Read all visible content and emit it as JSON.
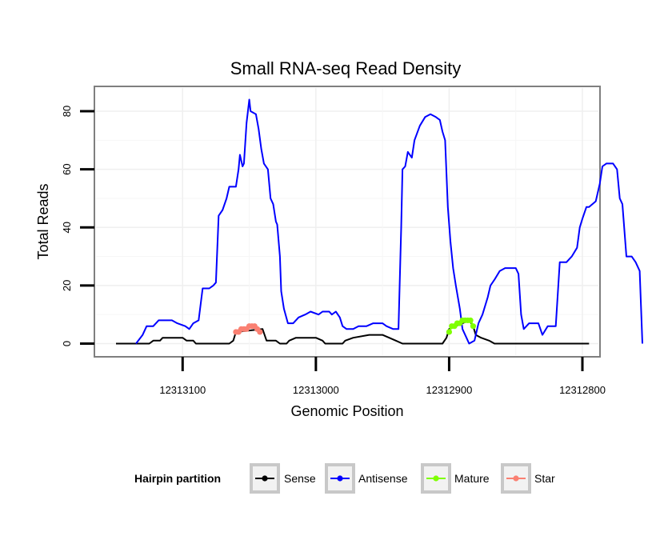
{
  "chart_data": {
    "type": "line",
    "title": "Small RNA-seq Read Density",
    "xlabel": "Genomic Position",
    "ylabel": "Total Reads",
    "xlim": [
      12313165,
      12312788
    ],
    "ylim": [
      -4,
      88
    ],
    "x_reversed": true,
    "x_ticks": [
      12313100,
      12313000,
      12312900,
      12312800
    ],
    "x_tick_labels": [
      "12313100",
      "12313000",
      "12312900",
      "12312800"
    ],
    "y_ticks": [
      0,
      20,
      40,
      60,
      80
    ],
    "y_tick_labels": [
      "0",
      "20",
      "40",
      "60",
      "80"
    ],
    "grid": true,
    "legend": {
      "title": "Hairpin partition",
      "position": "bottom",
      "entries": [
        {
          "name": "Sense",
          "color": "#000000"
        },
        {
          "name": "Antisense",
          "color": "#0000ff"
        },
        {
          "name": "Mature",
          "color": "#7fff00"
        },
        {
          "name": "Star",
          "color": "#fa8072"
        }
      ]
    },
    "series": [
      {
        "name": "Sense",
        "color": "#000000",
        "markers": false,
        "points": [
          [
            12313150,
            0
          ],
          [
            12313125,
            0
          ],
          [
            12313122,
            1
          ],
          [
            12313117,
            1
          ],
          [
            12313115,
            2
          ],
          [
            12313105,
            2
          ],
          [
            12313100,
            2
          ],
          [
            12313097,
            1
          ],
          [
            12313092,
            1
          ],
          [
            12313090,
            0
          ],
          [
            12313065,
            0
          ],
          [
            12313062,
            1
          ],
          [
            12313060,
            4
          ],
          [
            12313040,
            5
          ],
          [
            12313037,
            1
          ],
          [
            12313030,
            1
          ],
          [
            12313027,
            0
          ],
          [
            12313022,
            0
          ],
          [
            12313020,
            1
          ],
          [
            12313015,
            2
          ],
          [
            12313000,
            2
          ],
          [
            12312995,
            1
          ],
          [
            12312993,
            0
          ],
          [
            12312980,
            0
          ],
          [
            12312978,
            1
          ],
          [
            12312972,
            2
          ],
          [
            12312960,
            3
          ],
          [
            12312950,
            3
          ],
          [
            12312945,
            2
          ],
          [
            12312940,
            1
          ],
          [
            12312935,
            0
          ],
          [
            12312905,
            0
          ],
          [
            12312902,
            2
          ],
          [
            12312900,
            5
          ],
          [
            12312885,
            8
          ],
          [
            12312882,
            6
          ],
          [
            12312880,
            3
          ],
          [
            12312876,
            2
          ],
          [
            12312870,
            1
          ],
          [
            12312866,
            0
          ],
          [
            12312795,
            0
          ]
        ]
      },
      {
        "name": "Antisense",
        "color": "#0000ff",
        "markers": false,
        "points": [
          [
            12313135,
            0
          ],
          [
            12313130,
            3
          ],
          [
            12313127,
            6
          ],
          [
            12313122,
            6
          ],
          [
            12313118,
            8
          ],
          [
            12313108,
            8
          ],
          [
            12313104,
            7
          ],
          [
            12313098,
            6
          ],
          [
            12313095,
            5
          ],
          [
            12313092,
            7
          ],
          [
            12313088,
            8
          ],
          [
            12313085,
            19
          ],
          [
            12313080,
            19
          ],
          [
            12313077,
            20
          ],
          [
            12313075,
            21
          ],
          [
            12313073,
            44
          ],
          [
            12313070,
            46
          ],
          [
            12313067,
            50
          ],
          [
            12313065,
            54
          ],
          [
            12313060,
            54
          ],
          [
            12313058,
            60
          ],
          [
            12313057,
            65
          ],
          [
            12313055,
            61
          ],
          [
            12313054,
            62
          ],
          [
            12313052,
            76
          ],
          [
            12313050,
            84
          ],
          [
            12313049,
            80
          ],
          [
            12313045,
            79
          ],
          [
            12313043,
            74
          ],
          [
            12313041,
            67
          ],
          [
            12313039,
            62
          ],
          [
            12313036,
            60
          ],
          [
            12313034,
            50
          ],
          [
            12313032,
            48
          ],
          [
            12313030,
            42
          ],
          [
            12313029,
            41
          ],
          [
            12313027,
            30
          ],
          [
            12313026,
            18
          ],
          [
            12313024,
            12
          ],
          [
            12313021,
            7
          ],
          [
            12313017,
            7
          ],
          [
            12313013,
            9
          ],
          [
            12313008,
            10
          ],
          [
            12313004,
            11
          ],
          [
            12312998,
            10
          ],
          [
            12312995,
            11
          ],
          [
            12312990,
            11
          ],
          [
            12312988,
            10
          ],
          [
            12312985,
            11
          ],
          [
            12312982,
            9
          ],
          [
            12312980,
            6
          ],
          [
            12312977,
            5
          ],
          [
            12312972,
            5
          ],
          [
            12312968,
            6
          ],
          [
            12312962,
            6
          ],
          [
            12312957,
            7
          ],
          [
            12312950,
            7
          ],
          [
            12312947,
            6
          ],
          [
            12312942,
            5
          ],
          [
            12312938,
            5
          ],
          [
            12312936,
            40
          ],
          [
            12312935,
            60
          ],
          [
            12312933,
            61
          ],
          [
            12312931,
            66
          ],
          [
            12312928,
            64
          ],
          [
            12312926,
            70
          ],
          [
            12312922,
            75
          ],
          [
            12312918,
            78
          ],
          [
            12312914,
            79
          ],
          [
            12312910,
            78
          ],
          [
            12312907,
            77
          ],
          [
            12312905,
            73
          ],
          [
            12312903,
            70
          ],
          [
            12312901,
            47
          ],
          [
            12312899,
            35
          ],
          [
            12312897,
            26
          ],
          [
            12312895,
            20
          ],
          [
            12312892,
            12
          ],
          [
            12312890,
            5
          ],
          [
            12312887,
            2
          ],
          [
            12312885,
            0
          ],
          [
            12312881,
            1
          ],
          [
            12312878,
            7
          ],
          [
            12312875,
            10
          ],
          [
            12312871,
            16
          ],
          [
            12312869,
            20
          ],
          [
            12312866,
            22
          ],
          [
            12312862,
            25
          ],
          [
            12312858,
            26
          ],
          [
            12312850,
            26
          ],
          [
            12312848,
            24
          ],
          [
            12312846,
            10
          ],
          [
            12312844,
            5
          ],
          [
            12312840,
            7
          ],
          [
            12312833,
            7
          ],
          [
            12312830,
            3
          ],
          [
            12312826,
            6
          ],
          [
            12312820,
            6
          ],
          [
            12312817,
            28
          ],
          [
            12312812,
            28
          ],
          [
            12312808,
            30
          ],
          [
            12312804,
            33
          ],
          [
            12312802,
            40
          ],
          [
            12312800,
            43
          ],
          [
            12312797,
            47
          ],
          [
            12312795,
            47
          ],
          [
            12312790,
            49
          ],
          [
            12312787,
            55
          ],
          [
            12312785,
            61
          ],
          [
            12312782,
            62
          ],
          [
            12312777,
            62
          ],
          [
            12312774,
            60
          ],
          [
            12312772,
            50
          ],
          [
            12312770,
            48
          ],
          [
            12312767,
            30
          ],
          [
            12312763,
            30
          ],
          [
            12312760,
            28
          ],
          [
            12312757,
            25
          ],
          [
            12312755,
            0
          ]
        ]
      },
      {
        "name": "Mature",
        "color": "#7fff00",
        "markers": true,
        "points": [
          [
            12312900,
            4
          ],
          [
            12312898,
            6
          ],
          [
            12312896,
            6
          ],
          [
            12312894,
            7
          ],
          [
            12312892,
            7
          ],
          [
            12312890,
            8
          ],
          [
            12312888,
            8
          ],
          [
            12312886,
            8
          ],
          [
            12312884,
            8
          ],
          [
            12312882,
            6
          ]
        ]
      },
      {
        "name": "Star",
        "color": "#fa8072",
        "markers": true,
        "points": [
          [
            12313060,
            4
          ],
          [
            12313058,
            4
          ],
          [
            12313056,
            5
          ],
          [
            12313054,
            5
          ],
          [
            12313052,
            5
          ],
          [
            12313050,
            6
          ],
          [
            12313048,
            6
          ],
          [
            12313046,
            6
          ],
          [
            12313044,
            5
          ],
          [
            12313042,
            4
          ]
        ]
      }
    ]
  }
}
